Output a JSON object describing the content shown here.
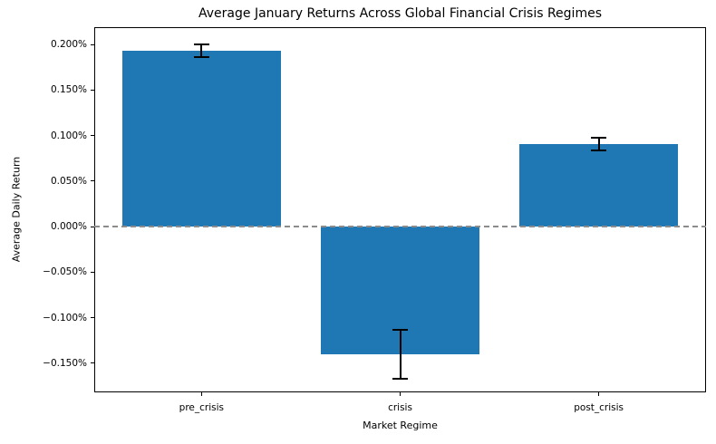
{
  "chart_data": {
    "type": "bar",
    "title": "Average January Returns Across Global Financial Crisis Regimes",
    "xlabel": "Market Regime",
    "ylabel": "Average Daily Return",
    "categories": [
      "pre_crisis",
      "crisis",
      "post_crisis"
    ],
    "values_pct": [
      0.193,
      -0.14,
      0.091
    ],
    "error_bars_pct": [
      0.007,
      0.027,
      0.007
    ],
    "y_ticks_pct": [
      0.2,
      0.15,
      0.1,
      0.05,
      0.0,
      -0.05,
      -0.1,
      -0.15
    ],
    "y_tick_labels": [
      "0.200%",
      "0.150%",
      "0.100%",
      "0.050%",
      "0.000%",
      "−0.050%",
      "−0.100%",
      "−0.150%"
    ],
    "ylim_pct": [
      -0.182,
      0.219
    ],
    "xlim_units": [
      -0.54,
      2.54
    ],
    "bar_width_fraction": 0.8,
    "bar_color": "#1f77b4",
    "error_color": "#000000",
    "zero_line": {
      "value_pct": 0,
      "style": "dashed",
      "color": "#8c8c8c"
    },
    "grid": false,
    "legend_position": "none"
  }
}
